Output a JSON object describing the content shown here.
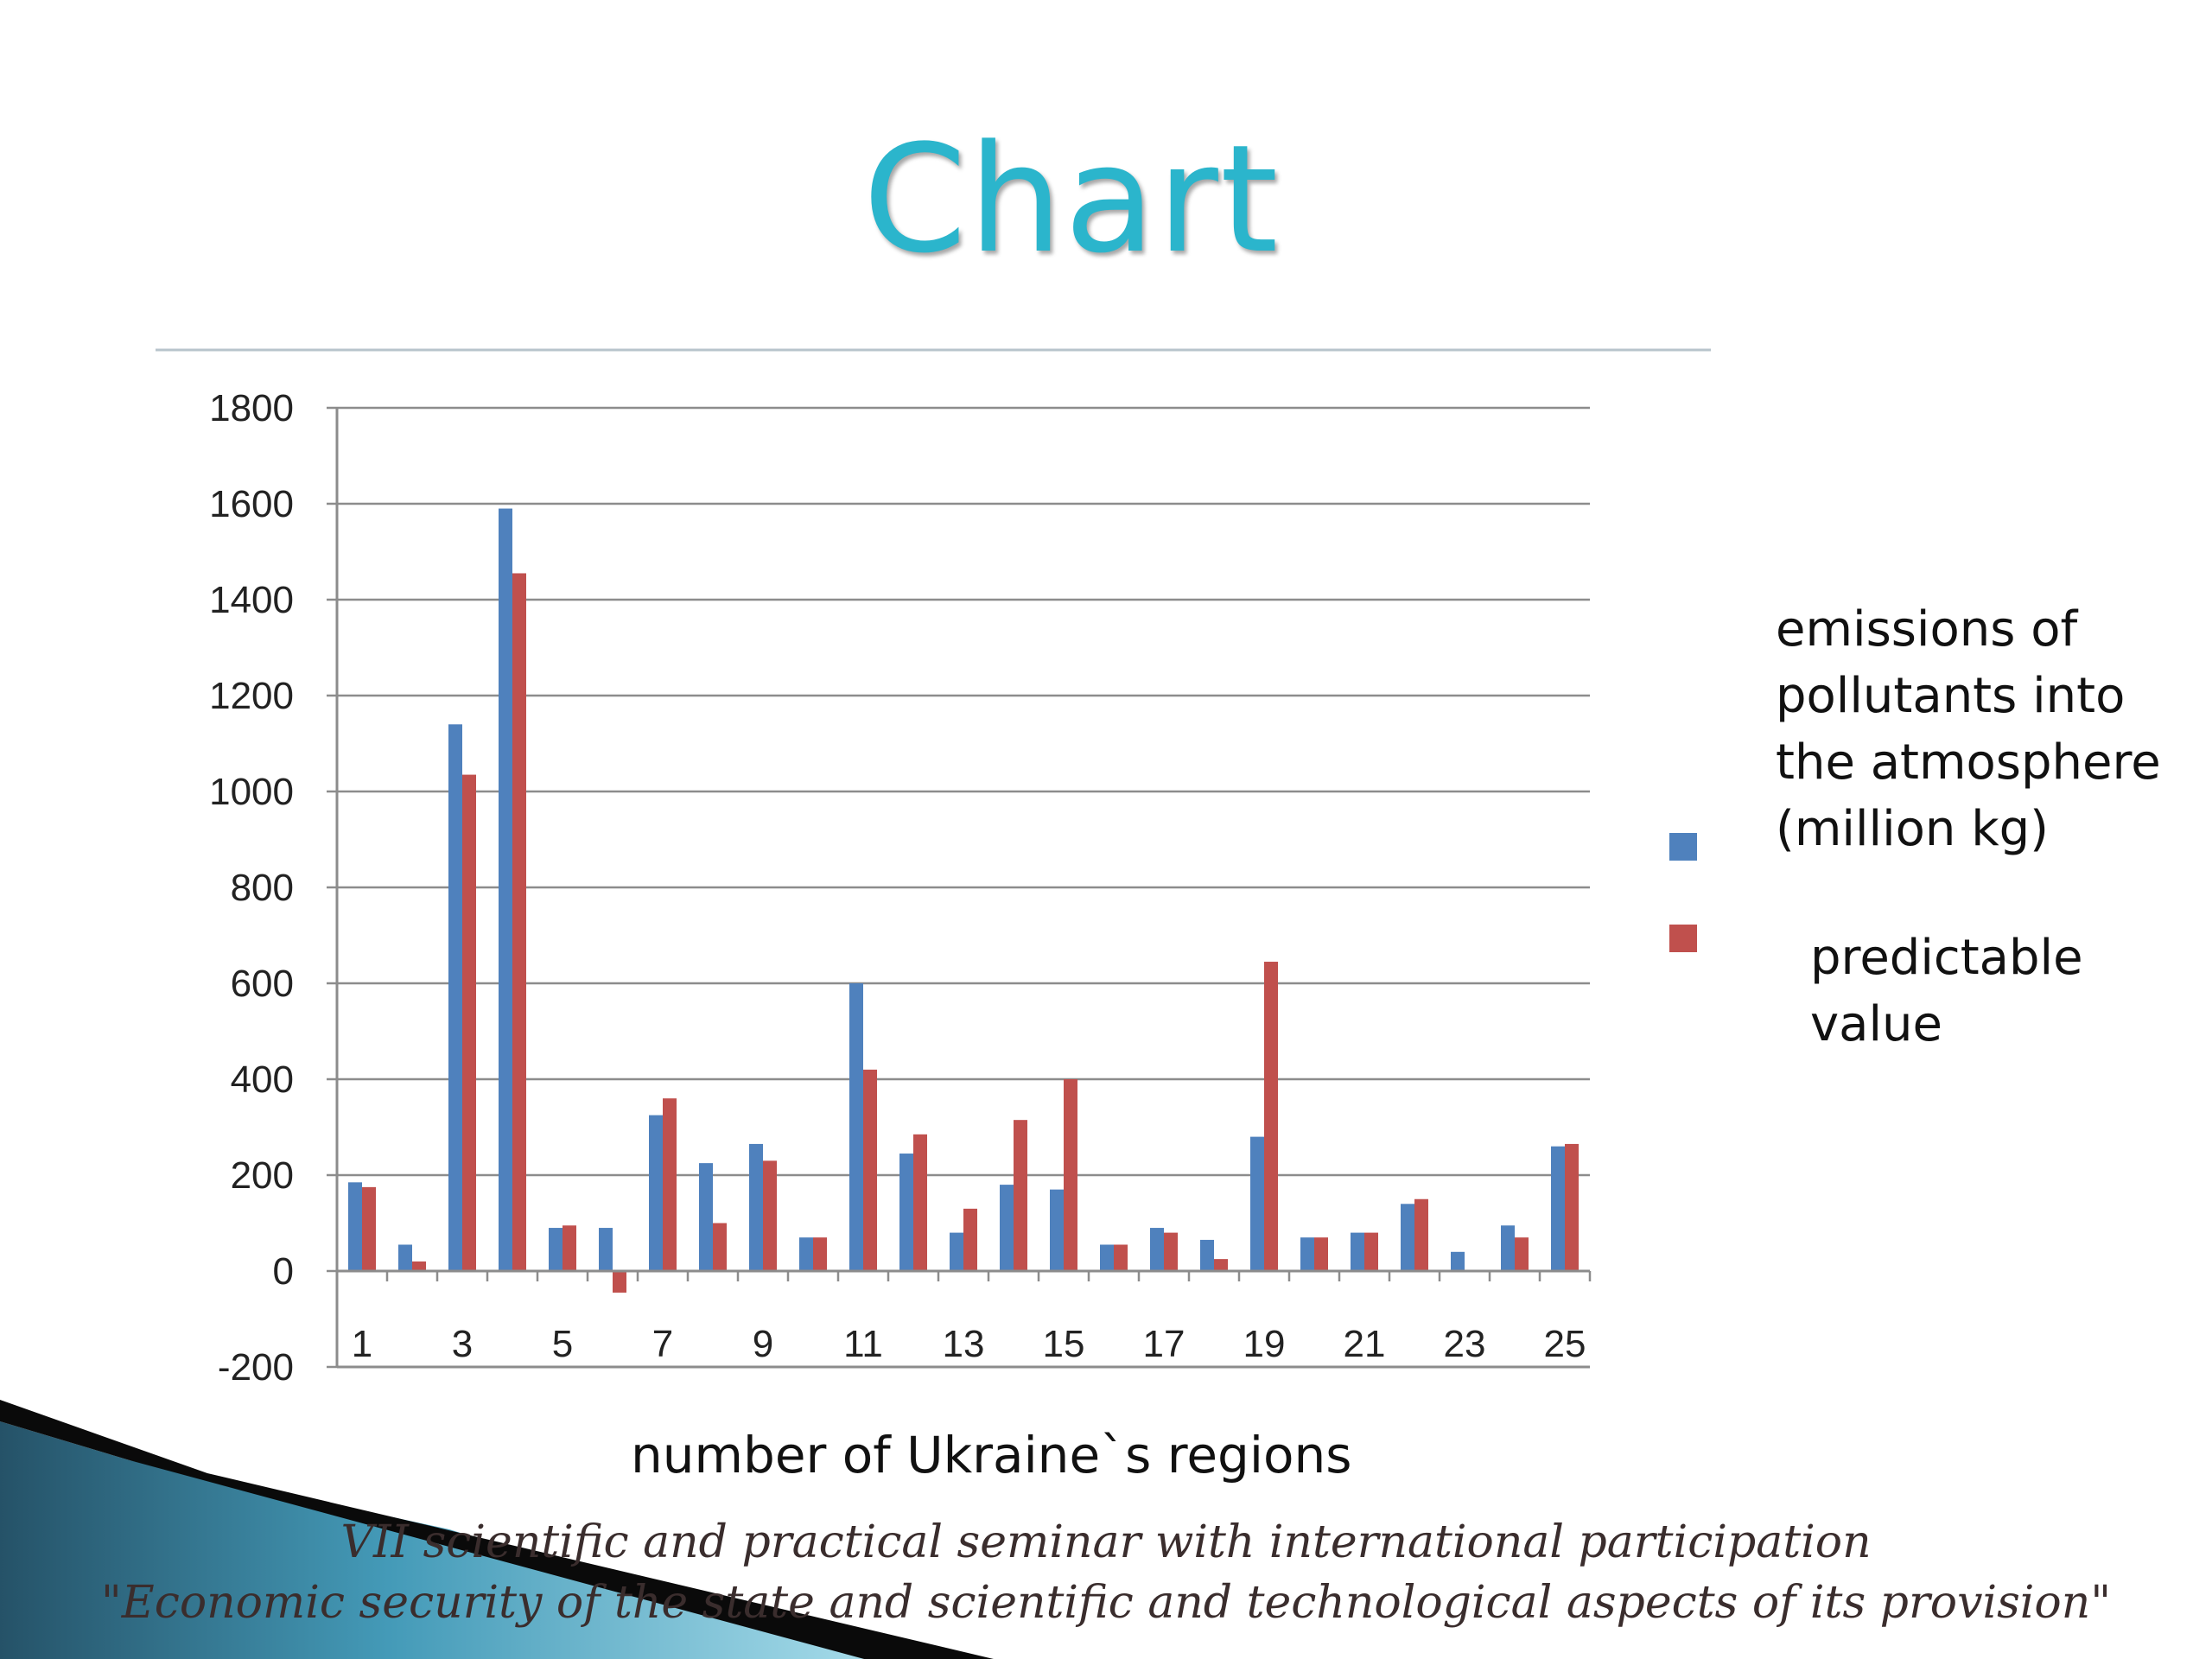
{
  "slide": {
    "title": "Chart",
    "footer_line1": "VII scientific and practical seminar with international participation",
    "footer_line2": "\"Economic security of the state and scientific and technological aspects of its provision\""
  },
  "colors": {
    "title": "#2bb5cc",
    "series_actual": "#4f81bd",
    "series_predicted": "#c0504d",
    "corner_dark": "#0d3f57",
    "corner_light": "#7cc6dc"
  },
  "chart_data": {
    "type": "bar",
    "title": "",
    "xlabel": "number of Ukraine`s regions",
    "ylabel": "",
    "ylim": [
      -200,
      1800
    ],
    "yticks": [
      -200,
      0,
      200,
      400,
      600,
      800,
      1000,
      1200,
      1400,
      1600,
      1800
    ],
    "xtick_labels": [
      "1",
      "3",
      "5",
      "7",
      "9",
      "11",
      "13",
      "15",
      "17",
      "19",
      "21",
      "23",
      "25"
    ],
    "categories": [
      1,
      2,
      3,
      4,
      5,
      6,
      7,
      8,
      9,
      10,
      11,
      12,
      13,
      14,
      15,
      16,
      17,
      18,
      19,
      20,
      21,
      22,
      23,
      24,
      25
    ],
    "grid": true,
    "legend_position": "right",
    "series": [
      {
        "name": "emissions of pollutants into the atmosphere (million kg)",
        "color": "#4f81bd",
        "values": [
          185,
          55,
          1140,
          1590,
          90,
          90,
          325,
          225,
          265,
          70,
          600,
          245,
          80,
          180,
          170,
          55,
          90,
          65,
          280,
          70,
          80,
          140,
          40,
          95,
          260
        ]
      },
      {
        "name": "predictable value",
        "color": "#c0504d",
        "values": [
          175,
          20,
          1035,
          1455,
          95,
          -45,
          360,
          100,
          230,
          70,
          420,
          285,
          130,
          315,
          400,
          55,
          80,
          25,
          645,
          70,
          80,
          150,
          0,
          70,
          265
        ]
      }
    ]
  }
}
